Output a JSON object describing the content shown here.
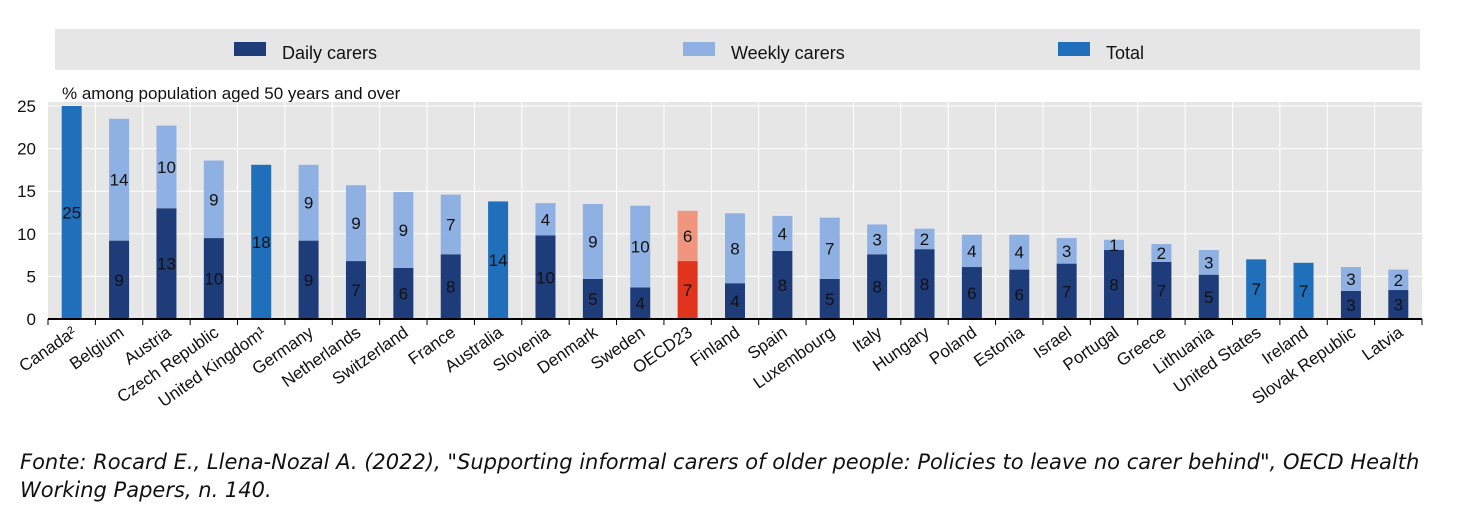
{
  "chart_data": {
    "type": "bar",
    "stacked": true,
    "ylabel": "% among population aged 50 years and over",
    "ylim": [
      0,
      25
    ],
    "yticks": [
      0,
      5,
      10,
      15,
      20,
      25
    ],
    "grid": true,
    "legend_position": "top",
    "legend": [
      {
        "key": "daily",
        "label": "Daily carers",
        "color": "#1f3c7a"
      },
      {
        "key": "weekly",
        "label": "Weekly carers",
        "color": "#8fb0e2"
      },
      {
        "key": "total",
        "label": "Total",
        "color": "#1f6fba"
      }
    ],
    "highlight_colors": {
      "daily": "#e0341e",
      "weekly": "#f0957e"
    },
    "categories": [
      "Canada²",
      "Belgium",
      "Austria",
      "Czech Republic",
      "United Kingdom¹",
      "Germany",
      "Netherlands",
      "Switzerland",
      "France",
      "Australia",
      "Slovenia",
      "Denmark",
      "Sweden",
      "OECD23",
      "Finland",
      "Spain",
      "Luxembourg",
      "Italy",
      "Hungary",
      "Poland",
      "Estonia",
      "Israel",
      "Portugal",
      "Greece",
      "Lithuania",
      "United States",
      "Ireland",
      "Slovak Republic",
      "Latvia"
    ],
    "highlight_category": "OECD23",
    "series": [
      {
        "key": "daily",
        "name": "Daily carers",
        "values": [
          null,
          9.2,
          13.0,
          9.5,
          null,
          9.2,
          6.8,
          6.0,
          7.6,
          null,
          9.8,
          4.7,
          3.7,
          6.8,
          4.2,
          8.0,
          4.7,
          7.6,
          8.2,
          6.1,
          5.8,
          6.5,
          8.1,
          6.7,
          5.2,
          null,
          null,
          3.3,
          3.4
        ],
        "labels": [
          null,
          "9",
          "13",
          "10",
          null,
          "9",
          "7",
          "6",
          "8",
          null,
          "10",
          "5",
          "4",
          "7",
          "4",
          "8",
          "5",
          "8",
          "8",
          "6",
          "6",
          "7",
          "8",
          "7",
          "5",
          null,
          null,
          "3",
          "3"
        ]
      },
      {
        "key": "weekly",
        "name": "Weekly carers",
        "values": [
          null,
          14.3,
          9.7,
          9.1,
          null,
          8.9,
          8.9,
          8.9,
          7.0,
          null,
          3.8,
          8.8,
          9.6,
          5.9,
          8.2,
          4.1,
          7.2,
          3.5,
          2.4,
          3.8,
          4.1,
          3.0,
          1.2,
          2.1,
          2.9,
          null,
          null,
          2.8,
          2.4
        ],
        "labels": [
          null,
          "14",
          "10",
          "9",
          null,
          "9",
          "9",
          "9",
          "7",
          null,
          "4",
          "9",
          "10",
          "6",
          "8",
          "4",
          "7",
          "3",
          "2",
          "4",
          "4",
          "3",
          "1",
          "2",
          "3",
          null,
          null,
          "3",
          "2"
        ]
      },
      {
        "key": "total",
        "name": "Total",
        "values": [
          25.0,
          null,
          null,
          null,
          18.1,
          null,
          null,
          null,
          null,
          13.8,
          null,
          null,
          null,
          null,
          null,
          null,
          null,
          null,
          null,
          null,
          null,
          null,
          null,
          null,
          null,
          7.0,
          6.6,
          null,
          null
        ],
        "labels": [
          "25",
          null,
          null,
          null,
          "18",
          null,
          null,
          null,
          null,
          "14",
          null,
          null,
          null,
          null,
          null,
          null,
          null,
          null,
          null,
          null,
          null,
          null,
          null,
          null,
          null,
          "7",
          "7",
          null,
          null
        ]
      }
    ]
  },
  "source_note": "Fonte: Rocard E., Llena-Nozal A. (2022), \"Supporting informal carers of older people: Policies to leave no carer behind\", OECD Health Working Papers, n. 140."
}
